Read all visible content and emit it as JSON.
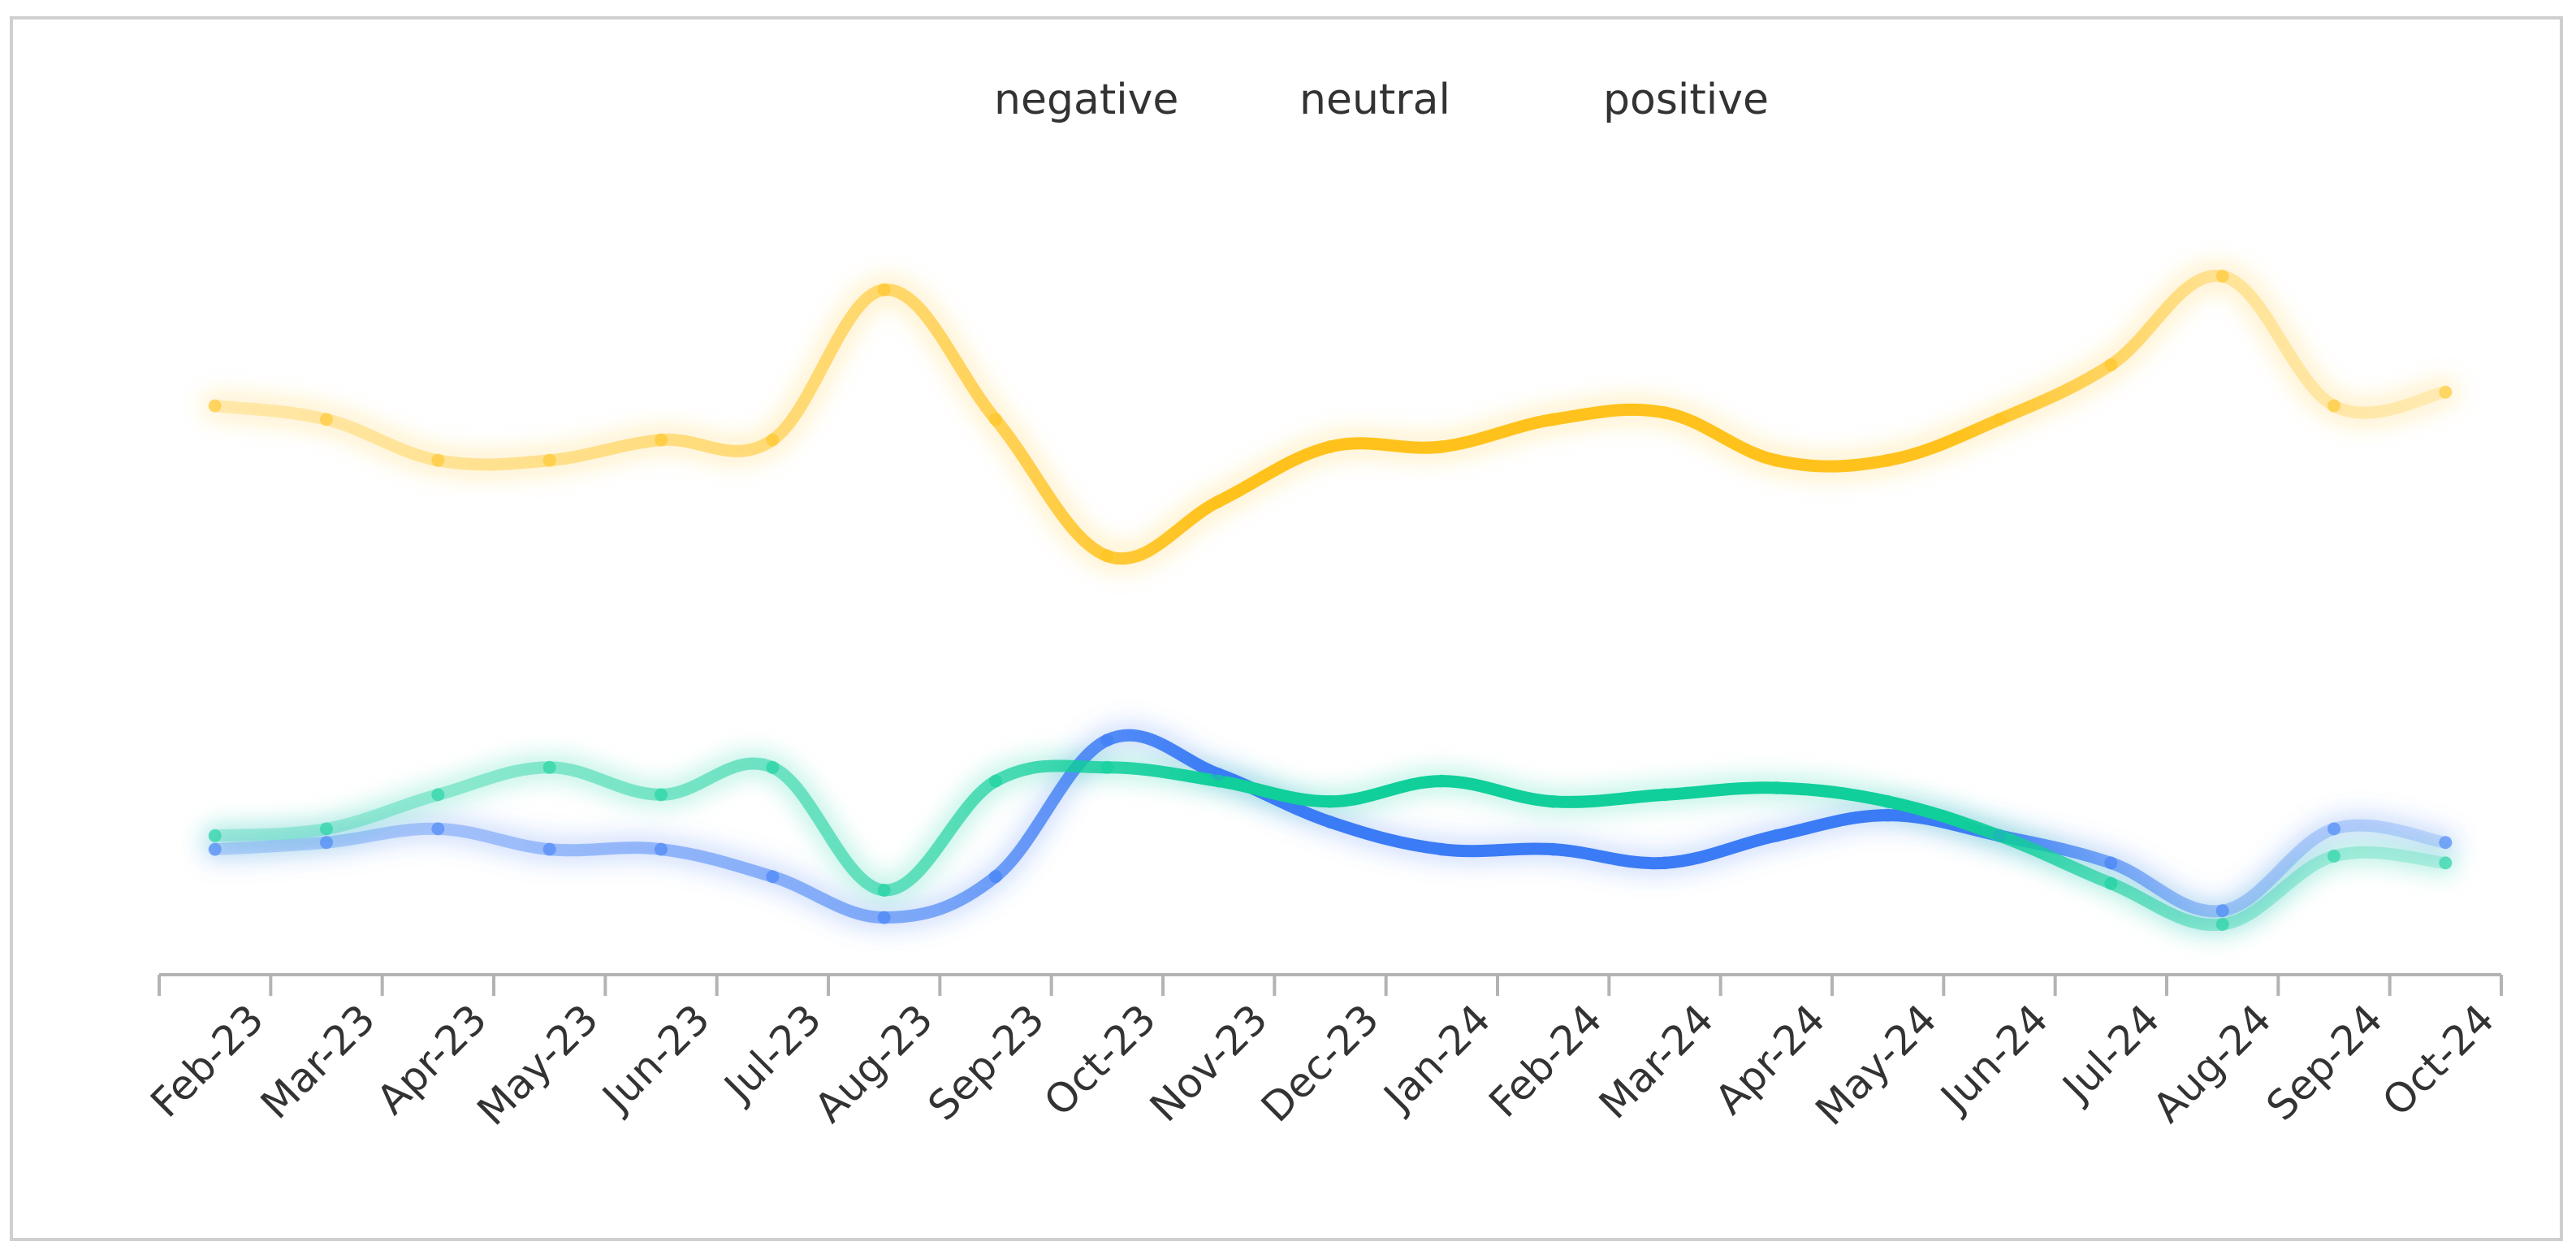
{
  "chart_data": {
    "type": "line",
    "title": "",
    "xlabel": "",
    "ylabel": "",
    "categories": [
      "Feb-23",
      "Mar-23",
      "Apr-23",
      "May-23",
      "Jun-23",
      "Jul-23",
      "Aug-23",
      "Sep-23",
      "Oct-23",
      "Nov-23",
      "Dec-23",
      "Jan-24",
      "Feb-24",
      "Mar-24",
      "Apr-24",
      "May-24",
      "Jun-24",
      "Jul-24",
      "Aug-24",
      "Sep-24",
      "Oct-24"
    ],
    "ylim": [
      0,
      100
    ],
    "grid": false,
    "legend_position": "top-center",
    "series": [
      {
        "name": "negative",
        "color": "#3b7bf5",
        "values": [
          16,
          17,
          19,
          16,
          16,
          12,
          6,
          12,
          32,
          27,
          20,
          16,
          16,
          14,
          18,
          21,
          18,
          14,
          7,
          19,
          17
        ]
      },
      {
        "name": "neutral",
        "color": "#10cf9a",
        "values": [
          18,
          19,
          24,
          28,
          24,
          28,
          10,
          26,
          28,
          26,
          23,
          26,
          23,
          24,
          25,
          23,
          18,
          11,
          5,
          15,
          14
        ]
      },
      {
        "name": "positive",
        "color": "#ffc21c",
        "values": [
          81,
          79,
          73,
          73,
          76,
          76,
          98,
          79,
          59,
          67,
          75,
          75,
          79,
          80,
          73,
          73,
          79,
          87,
          100,
          81,
          83
        ]
      }
    ]
  }
}
